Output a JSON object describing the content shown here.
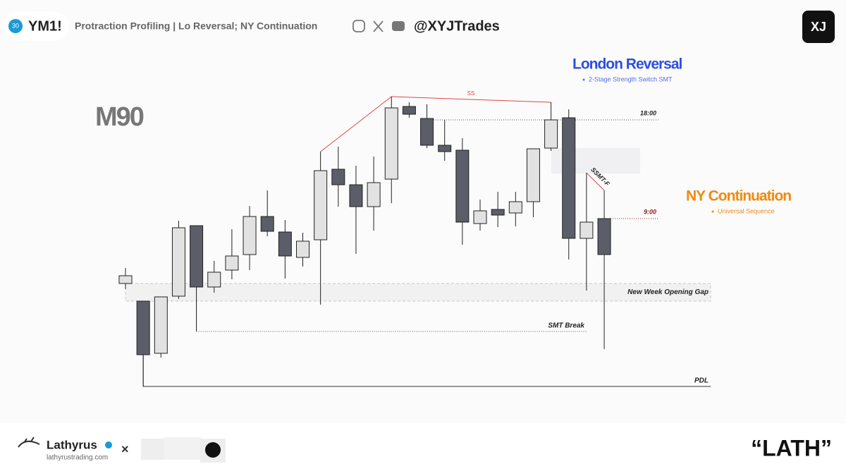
{
  "header": {
    "badge": "30",
    "symbol": "YM1!",
    "subtitle": "Protraction Profiling | Lo Reversal; NY Continuation",
    "handle": "@XYJTrades",
    "logo": "XJ"
  },
  "chart_data": {
    "type": "candlestick",
    "title": "M90",
    "ylim": [
      0,
      440
    ],
    "series": [
      {
        "up_color": "#e2e2e2",
        "down_color": "#5b5d68",
        "open": [
          158,
          133,
          59,
          140,
          240,
          153,
          177,
          199,
          253,
          231,
          195,
          220,
          320,
          298,
          267,
          306,
          409,
          392,
          354,
          347,
          243,
          263,
          258,
          274,
          350,
          393,
          222,
          250
        ],
        "high": [
          180,
          133,
          139,
          247,
          240,
          190,
          235,
          268,
          290,
          248,
          230,
          345,
          352,
          325,
          338,
          423,
          415,
          412,
          390,
          364,
          277,
          288,
          288,
          349,
          415,
          405,
          315,
          290
        ],
        "low": [
          150,
          12,
          53,
          136,
          90,
          145,
          164,
          177,
          225,
          165,
          182,
          128,
          267,
          200,
          233,
          272,
          393,
          350,
          332,
          213,
          233,
          238,
          239,
          252,
          346,
          192,
          148,
          65
        ],
        "close": [
          169,
          57,
          139,
          237,
          153,
          174,
          197,
          253,
          232,
          197,
          218,
          318,
          298,
          267,
          301,
          407,
          398,
          354,
          345,
          245,
          261,
          255,
          274,
          349,
          390,
          222,
          245,
          199
        ]
      }
    ],
    "annotations": {
      "london": "London Reversal",
      "london_note": "2-Stage Strength Switch SMT",
      "ny": "NY Continuation",
      "ny_note": "Universal Sequence",
      "ss": "SS",
      "t18": "18:00",
      "t9": "9:00",
      "ssmt": "SSMT-F",
      "nwog": "New Week Opening Gap",
      "smt": "SMT Break",
      "pdl": "PDL"
    }
  },
  "footer": {
    "name": "Lathyrus",
    "site": "lathyrustrading.com",
    "times": "×",
    "quote": "“LATH”"
  }
}
